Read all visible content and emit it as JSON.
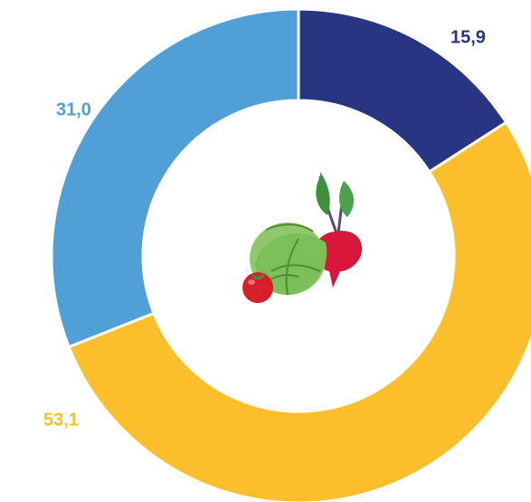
{
  "chart_data": {
    "type": "donut",
    "categories": [
      null,
      null,
      null
    ],
    "values": [
      15.9,
      53.1,
      31.0
    ],
    "value_labels": [
      "15,9",
      "53,1",
      "31,0"
    ],
    "colors": [
      "#283583",
      "#fbbf2b",
      "#509fd6"
    ]
  }
}
